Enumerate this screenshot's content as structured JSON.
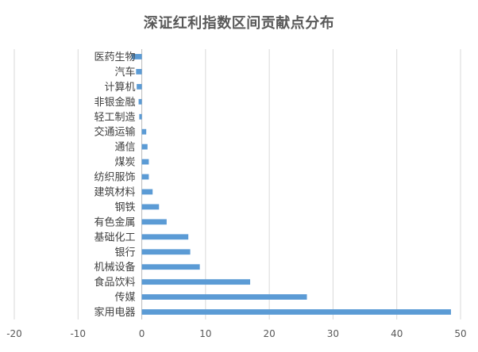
{
  "chart_data": {
    "type": "bar",
    "orientation": "horizontal",
    "title": "深证红利指数区间贡献点分布",
    "xlabel": "",
    "ylabel": "",
    "xlim": [
      -20,
      50
    ],
    "x_ticks": [
      -20,
      -10,
      0,
      10,
      20,
      30,
      40,
      50
    ],
    "x_tick_labels": [
      "-20",
      "-10",
      "0",
      "10",
      "20",
      "30",
      "40",
      "50"
    ],
    "grid": "vertical major gridlines",
    "legend": "none",
    "bar_color": "#5B9BD5",
    "categories": [
      "医药生物",
      "汽车",
      "计算机",
      "非银金融",
      "轻工制造",
      "交通运输",
      "通信",
      "煤炭",
      "纺织服饰",
      "建筑材料",
      "钢铁",
      "有色金属",
      "基础化工",
      "银行",
      "机械设备",
      "食品饮料",
      "传媒",
      "家用电器"
    ],
    "values": [
      -1.6,
      -0.9,
      -0.8,
      -0.5,
      -0.4,
      0.7,
      0.9,
      1.1,
      1.1,
      1.7,
      2.7,
      3.9,
      7.3,
      7.6,
      9.1,
      17.0,
      25.9,
      48.5
    ]
  }
}
